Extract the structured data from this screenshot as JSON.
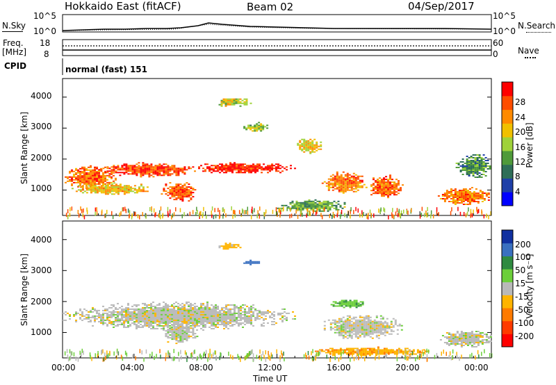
{
  "header": {
    "station": "Hokkaido East (fitACF)",
    "beam": "Beam 02",
    "date": "04/Sep/2017"
  },
  "sky_panel": {
    "left_label": "N.Sky",
    "left_ticks": [
      "10^5",
      "10^0"
    ],
    "right_ticks": [
      "10^5",
      "10^0"
    ],
    "right_label": "N.Search"
  },
  "freq_panel": {
    "left_label_top": "Freq.",
    "left_label_units": "[MHz]",
    "left_ticks": [
      "18",
      "8"
    ],
    "right_ticks": [
      "60",
      "0"
    ],
    "right_label": "Nave"
  },
  "cpid_panel": {
    "label": "CPID",
    "mode": "normal (fast) 151"
  },
  "axes": {
    "ylabel": "Slant Range [km]",
    "xlabel": "Time UT",
    "xticks": [
      "00:00",
      "04:00",
      "08:00",
      "12:00",
      "16:00",
      "20:00",
      "00:00"
    ],
    "yticks": [
      "1000",
      "2000",
      "3000",
      "4000"
    ]
  },
  "power_colorbar": {
    "label": "Power [dB]",
    "ticks": [
      "4",
      "8",
      "12",
      "16",
      "20",
      "24",
      "28"
    ],
    "colors": [
      "#0000ff",
      "#1e3fa8",
      "#2e6e58",
      "#4f9a3a",
      "#9fd23a",
      "#f0c000",
      "#ff8a00",
      "#ff4d00",
      "#ff0000"
    ]
  },
  "velocity_colorbar": {
    "label": "Velocity [m s⁻¹]",
    "ticks": [
      "200",
      "100",
      "50",
      "15",
      "-15",
      "-50",
      "-100",
      "-200"
    ],
    "colors": [
      "#1030a0",
      "#3a70c0",
      "#2f8a40",
      "#6ccf3a",
      "#b9b9b9",
      "#ffb400",
      "#ff7a00",
      "#ff3a00",
      "#ff0000"
    ]
  },
  "chart_data": [
    {
      "type": "heatmap",
      "title": "",
      "xlabel": "",
      "ylabel": "Slant Range [km]",
      "xlim": [
        0,
        24
      ],
      "ylim": [
        180,
        4600
      ],
      "colorbar": "Power [dB]",
      "blobs": [
        {
          "t": [
            0.0,
            3.0
          ],
          "r": [
            1050,
            1800
          ],
          "v": 25
        },
        {
          "t": [
            2.0,
            7.5
          ],
          "r": [
            1450,
            1900
          ],
          "v": 27
        },
        {
          "t": [
            7.0,
            13.0
          ],
          "r": [
            1550,
            1900
          ],
          "v": 29
        },
        {
          "t": [
            5.5,
            7.5
          ],
          "r": [
            650,
            1300
          ],
          "v": 26
        },
        {
          "t": [
            0.5,
            5.0
          ],
          "r": [
            850,
            1250
          ],
          "v": 20
        },
        {
          "t": [
            13.0,
            14.5
          ],
          "r": [
            2200,
            2700
          ],
          "v": 19
        },
        {
          "t": [
            14.5,
            17.0
          ],
          "r": [
            900,
            1600
          ],
          "v": 24
        },
        {
          "t": [
            17.0,
            19.0
          ],
          "r": [
            750,
            1500
          ],
          "v": 25
        },
        {
          "t": [
            21.0,
            24.0
          ],
          "r": [
            550,
            1100
          ],
          "v": 24
        },
        {
          "t": [
            8.5,
            10.5
          ],
          "r": [
            3700,
            4000
          ],
          "v": 18
        },
        {
          "t": [
            10.0,
            11.5
          ],
          "r": [
            2900,
            3200
          ],
          "v": 15
        },
        {
          "t": [
            12.0,
            16.0
          ],
          "r": [
            300,
            700
          ],
          "v": 13
        },
        {
          "t": [
            22.0,
            24.0
          ],
          "r": [
            1400,
            2200
          ],
          "v": 11
        }
      ]
    },
    {
      "type": "heatmap",
      "title": "",
      "xlabel": "Time UT",
      "ylabel": "Slant Range [km]",
      "xlim": [
        0,
        24
      ],
      "ylim": [
        180,
        4600
      ],
      "colorbar": "Velocity [m s⁻¹]",
      "blobs": [
        {
          "t": [
            0.0,
            13.0
          ],
          "r": [
            1100,
            2000
          ],
          "v": 0
        },
        {
          "t": [
            5.5,
            7.5
          ],
          "r": [
            650,
            1300
          ],
          "v": 0
        },
        {
          "t": [
            14.5,
            19.0
          ],
          "r": [
            800,
            1600
          ],
          "v": 0
        },
        {
          "t": [
            21.0,
            24.0
          ],
          "r": [
            550,
            1100
          ],
          "v": 0
        },
        {
          "t": [
            10.0,
            11.0
          ],
          "r": [
            3200,
            3350
          ],
          "v": 150
        },
        {
          "t": [
            15.0,
            17.0
          ],
          "r": [
            1800,
            2100
          ],
          "v": 40
        },
        {
          "t": [
            8.5,
            10.0
          ],
          "r": [
            3700,
            3900
          ],
          "v": -30
        },
        {
          "t": [
            14.0,
            20.5
          ],
          "r": [
            250,
            550
          ],
          "v": -40
        }
      ]
    }
  ]
}
